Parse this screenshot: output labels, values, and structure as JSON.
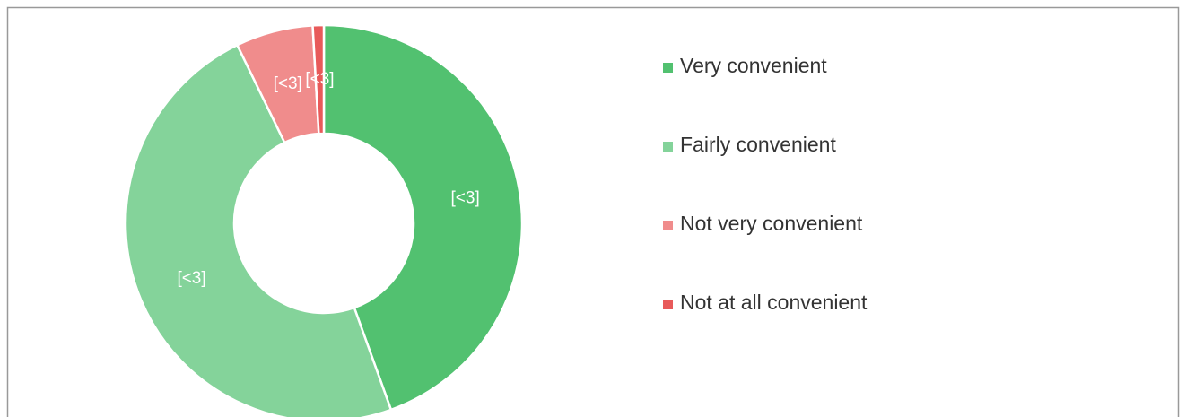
{
  "chart_data": {
    "type": "donut",
    "categories": [
      "Very convenient",
      "Fairly convenient",
      "Not very convenient",
      "Not at all convenient"
    ],
    "values": [
      44.5,
      48.3,
      6.3,
      0.9
    ],
    "value_labels": [
      "[<3]",
      "[<3]",
      "[<3]",
      "[<3]"
    ],
    "colors": [
      "#52c170",
      "#84d39a",
      "#f08c8c",
      "#e85a5a"
    ],
    "legend": "right"
  }
}
